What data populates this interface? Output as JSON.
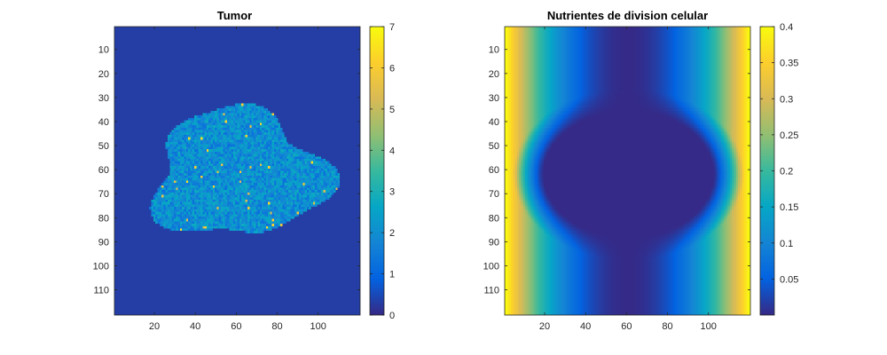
{
  "chart_data": [
    {
      "type": "heatmap",
      "title": "Tumor",
      "xlabel": "",
      "ylabel": "",
      "grid": [
        120,
        120
      ],
      "xlim": [
        0.5,
        120.5
      ],
      "ylim": [
        0.5,
        120.5
      ],
      "y_direction": "reversed",
      "xticks": [
        20,
        40,
        60,
        80,
        100
      ],
      "yticks": [
        10,
        20,
        30,
        40,
        50,
        60,
        70,
        80,
        90,
        100,
        110
      ],
      "clim": [
        0,
        7
      ],
      "colorbar_ticks": [
        0,
        1,
        2,
        3,
        4,
        5,
        6,
        7
      ],
      "colorbar_labels": [
        "0",
        "1",
        "2",
        "3",
        "4",
        "5",
        "6",
        "7"
      ],
      "colormap": "parula",
      "background_value": 0.3,
      "tumor_extent": {
        "cols": [
          12,
          110
        ],
        "rows": [
          31,
          93
        ]
      },
      "tumor_typical_value": 2,
      "tumor_max_value": 6.5
    },
    {
      "type": "heatmap",
      "title": "Nutrientes de division celular",
      "xlabel": "",
      "ylabel": "",
      "grid": [
        120,
        120
      ],
      "xlim": [
        0.5,
        120.5
      ],
      "ylim": [
        0.5,
        120.5
      ],
      "y_direction": "reversed",
      "xticks": [
        20,
        40,
        60,
        80,
        100
      ],
      "yticks": [
        10,
        20,
        30,
        40,
        50,
        60,
        70,
        80,
        90,
        100,
        110
      ],
      "clim": [
        0,
        0.4
      ],
      "colorbar_ticks": [
        0.05,
        0.1,
        0.15,
        0.2,
        0.25,
        0.3,
        0.35,
        0.4
      ],
      "colorbar_labels": [
        "0.05",
        "0.1",
        "0.15",
        "0.2",
        "0.25",
        "0.3",
        "0.35",
        "0.4"
      ],
      "colormap": "parula",
      "edge_value": 0.4,
      "depleted_value": 0.0,
      "depleted_region_cols": [
        12,
        110
      ],
      "depleted_region_rows": [
        31,
        93
      ]
    }
  ],
  "colors": {
    "parula_stops": [
      "#352a87",
      "#0363e1",
      "#1485d4",
      "#06a7c6",
      "#38b99e",
      "#92bf73",
      "#d9ba56",
      "#fcce2e",
      "#f9fb0e"
    ]
  }
}
